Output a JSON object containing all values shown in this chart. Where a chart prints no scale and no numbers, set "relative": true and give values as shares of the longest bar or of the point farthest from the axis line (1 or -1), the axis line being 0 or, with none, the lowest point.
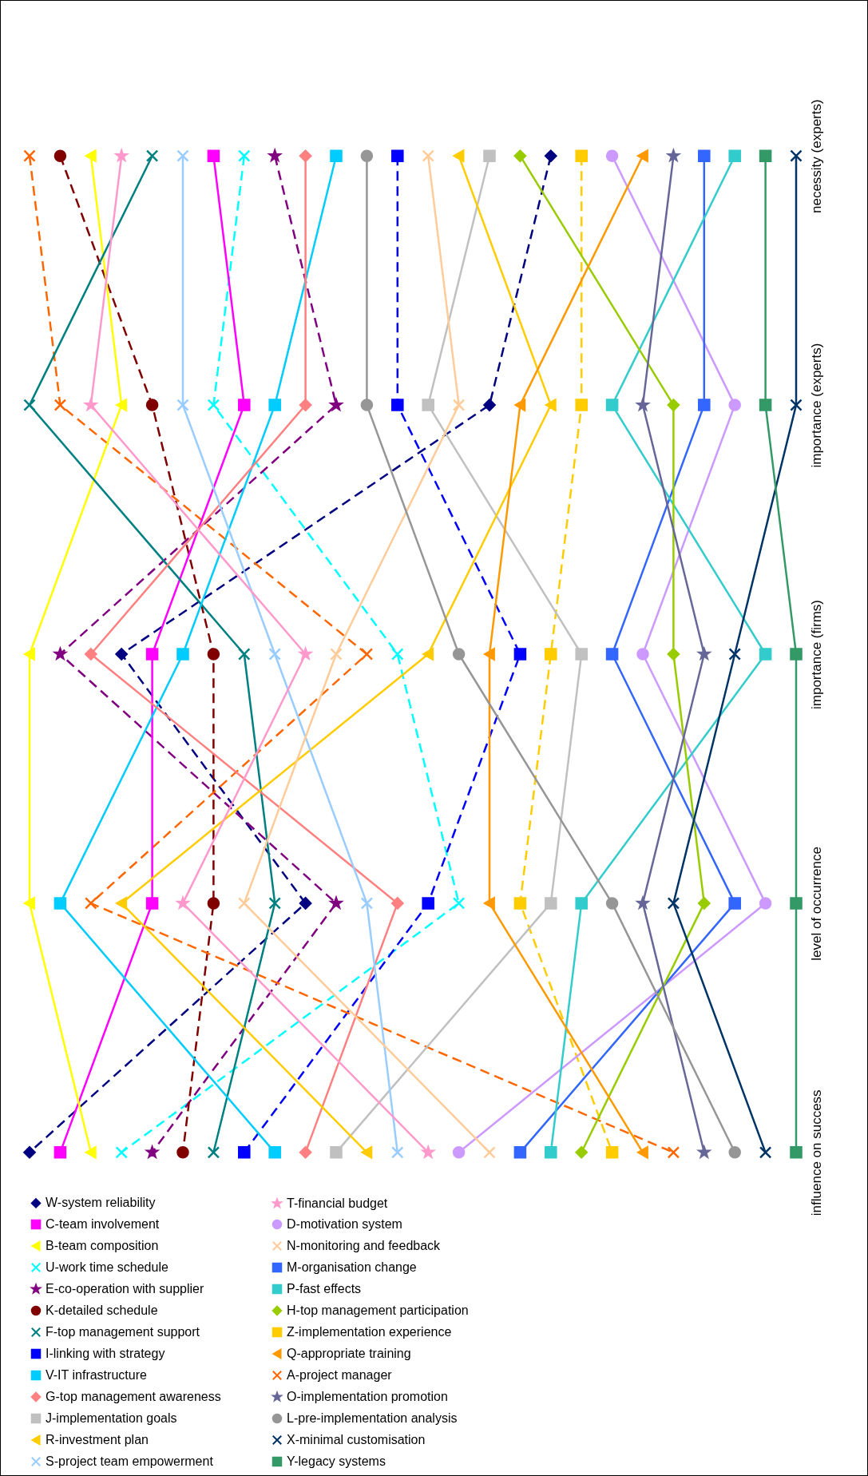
{
  "chart_data": {
    "type": "line",
    "relative": true,
    "orientation": "horizontal",
    "legend": "bottom",
    "grid": false,
    "categories": [
      "necessity (experts)",
      "importance (experts)",
      "importance (firms)",
      "level of occurrence",
      "influence on success"
    ],
    "series": [
      {
        "name": "W-system reliability",
        "color": "#000080",
        "marker": "diamond",
        "line_style": "dashed",
        "values": [
          0.68,
          0.6,
          0.12,
          0.36,
          0
        ]
      },
      {
        "name": "C-team involvement",
        "color": "#ff00ff",
        "marker": "square",
        "line_style": "solid",
        "values": [
          0.24,
          0.28,
          0.16,
          0.16,
          0.04
        ]
      },
      {
        "name": "B-team composition",
        "color": "#ffff00",
        "marker": "triangle",
        "line_style": "solid",
        "values": [
          0.08,
          0.12,
          0,
          0,
          0.08
        ]
      },
      {
        "name": "U-work time schedule",
        "color": "#00ffff",
        "marker": "cross",
        "line_style": "dashed",
        "values": [
          0.28,
          0.24,
          0.48,
          0.56,
          0.12
        ]
      },
      {
        "name": "E-co-operation with supplier",
        "color": "#800080",
        "marker": "star",
        "line_style": "dashed",
        "values": [
          0.32,
          0.4,
          0.04,
          0.4,
          0.16
        ]
      },
      {
        "name": "K-detailed schedule",
        "color": "#800000",
        "marker": "circle",
        "line_style": "dashed",
        "values": [
          0.04,
          0.16,
          0.24,
          0.24,
          0.2
        ]
      },
      {
        "name": "F-top management support",
        "color": "#008080",
        "marker": "cross",
        "line_style": "solid",
        "values": [
          0.16,
          0,
          0.28,
          0.32,
          0.24
        ]
      },
      {
        "name": "I-linking with strategy",
        "color": "#0000ff",
        "marker": "square",
        "line_style": "dashed",
        "values": [
          0.48,
          0.48,
          0.64,
          0.52,
          0.28
        ]
      },
      {
        "name": "V-IT infrastructure",
        "color": "#00ccff",
        "marker": "square",
        "line_style": "solid",
        "values": [
          0.4,
          0.32,
          0.2,
          0.04,
          0.32
        ]
      },
      {
        "name": "G-top management awareness",
        "color": "#ff8080",
        "marker": "diamond",
        "line_style": "solid",
        "values": [
          0.36,
          0.36,
          0.08,
          0.48,
          0.36
        ]
      },
      {
        "name": "J-implementation goals",
        "color": "#c0c0c0",
        "marker": "square",
        "line_style": "solid",
        "values": [
          0.6,
          0.52,
          0.72,
          0.68,
          0.4
        ]
      },
      {
        "name": "R-investment plan",
        "color": "#ffcc00",
        "marker": "triangle",
        "line_style": "solid",
        "values": [
          0.56,
          0.68,
          0.52,
          0.12,
          0.44
        ]
      },
      {
        "name": "S-project team empowerment",
        "color": "#99ccff",
        "marker": "cross",
        "line_style": "solid",
        "values": [
          0.2,
          0.2,
          0.32,
          0.44,
          0.48
        ]
      },
      {
        "name": "T-financial budget",
        "color": "#ff99cc",
        "marker": "star",
        "line_style": "solid",
        "values": [
          0.12,
          0.08,
          0.36,
          0.2,
          0.52
        ]
      },
      {
        "name": "D-motivation system",
        "color": "#cc99ff",
        "marker": "circle",
        "line_style": "solid",
        "values": [
          0.76,
          0.92,
          0.8,
          0.96,
          0.56
        ]
      },
      {
        "name": "N-monitoring and feedback",
        "color": "#ffcc99",
        "marker": "cross",
        "line_style": "solid",
        "values": [
          0.52,
          0.56,
          0.4,
          0.28,
          0.6
        ]
      },
      {
        "name": "M-organisation change",
        "color": "#3366ff",
        "marker": "square",
        "line_style": "solid",
        "values": [
          0.88,
          0.88,
          0.76,
          0.92,
          0.64
        ]
      },
      {
        "name": "P-fast effects",
        "color": "#33cccc",
        "marker": "square",
        "line_style": "solid",
        "values": [
          0.92,
          0.76,
          0.96,
          0.72,
          0.68
        ]
      },
      {
        "name": "H-top management participation",
        "color": "#99cc00",
        "marker": "diamond",
        "line_style": "solid",
        "values": [
          0.64,
          0.84,
          0.84,
          0.88,
          0.72
        ]
      },
      {
        "name": "Z-implementation experience",
        "color": "#ffcc00",
        "marker": "square",
        "line_style": "dashed",
        "values": [
          0.72,
          0.72,
          0.68,
          0.64,
          0.76
        ]
      },
      {
        "name": "Q-appropriate training",
        "color": "#ff9900",
        "marker": "triangle",
        "line_style": "solid",
        "values": [
          0.8,
          0.64,
          0.6,
          0.6,
          0.8
        ]
      },
      {
        "name": "A-project manager",
        "color": "#ff6600",
        "marker": "cross",
        "line_style": "dashed",
        "values": [
          0,
          0.04,
          0.44,
          0.08,
          0.84
        ]
      },
      {
        "name": "O-implementation promotion",
        "color": "#666699",
        "marker": "star",
        "line_style": "solid",
        "values": [
          0.84,
          0.8,
          0.88,
          0.8,
          0.88
        ]
      },
      {
        "name": "L-pre-implementation analysis",
        "color": "#969696",
        "marker": "circle",
        "line_style": "solid",
        "values": [
          0.44,
          0.44,
          0.56,
          0.76,
          0.92
        ]
      },
      {
        "name": "X-minimal customisation",
        "color": "#003366",
        "marker": "cross",
        "line_style": "solid",
        "values": [
          1,
          1,
          0.92,
          0.84,
          0.96
        ]
      },
      {
        "name": "Y-legacy systems",
        "color": "#339966",
        "marker": "square",
        "line_style": "solid",
        "values": [
          0.96,
          0.96,
          1,
          1,
          1
        ]
      }
    ]
  }
}
